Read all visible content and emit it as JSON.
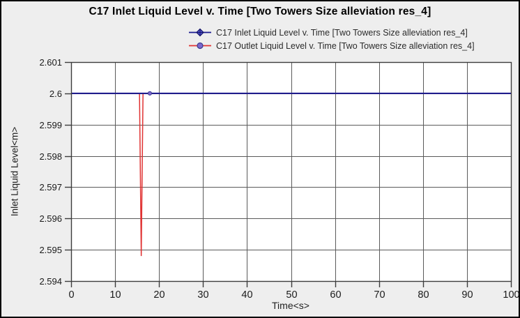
{
  "window": {
    "background": "#eeeeee",
    "border_color": "#000000",
    "plot_background": "#ffffff",
    "grid_color": "#5a5a5a",
    "frame_color": "#3c3c3c",
    "text_color": "#1a1a1a"
  },
  "chart_data": {
    "type": "line",
    "title": "C17 Inlet Liquid Level v. Time [Two Towers Size alleviation res_4]",
    "xlabel": "Time<s>",
    "ylabel": "Inlet Liquid Level<m>",
    "xlim": [
      0,
      100
    ],
    "ylim": [
      2.594,
      2.601
    ],
    "xticks": [
      0,
      10,
      20,
      30,
      40,
      50,
      60,
      70,
      80,
      90,
      100
    ],
    "yticks": [
      2.601,
      2.6,
      2.599,
      2.598,
      2.597,
      2.596,
      2.595,
      2.594
    ],
    "grid": true,
    "legend_position": "top",
    "series": [
      {
        "name": "C17 Inlet Liquid Level v. Time [Two Towers Size alleviation res_4]",
        "color": "#1a1a90",
        "line_width": 2,
        "marker": "diamond",
        "marker_fill": "#5252c8",
        "marker_stroke": "#14146a",
        "points": [
          [
            0,
            2.6
          ],
          [
            100,
            2.6
          ]
        ],
        "marker_points": []
      },
      {
        "name": "C17 Outlet Liquid Level v. Time [Two Towers Size alleviation res_4]",
        "color": "#e03232",
        "line_width": 1.5,
        "marker": "circle",
        "marker_fill": "#7b68ce",
        "marker_stroke": "#3a3a8c",
        "points": [
          [
            0,
            2.6
          ],
          [
            15.55,
            2.6
          ],
          [
            15.95,
            2.5948
          ],
          [
            16.35,
            2.6
          ],
          [
            100,
            2.6
          ]
        ],
        "marker_points": [
          [
            17.9,
            2.6
          ]
        ]
      }
    ]
  }
}
